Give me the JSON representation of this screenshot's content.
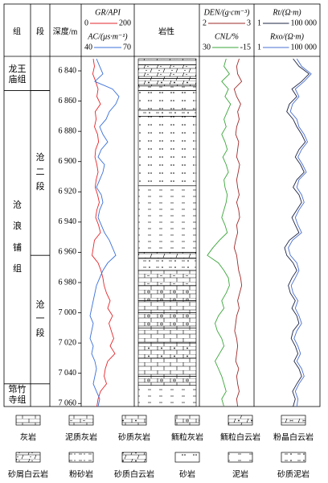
{
  "chart_data": {
    "type": "well-log",
    "headers": {
      "group": "组",
      "segment": "段",
      "depth": "深度/m",
      "lithology": "岩性"
    },
    "ylim": [
      6832,
      7062
    ],
    "yticks": [
      {
        "value": 6840,
        "label": "6 840"
      },
      {
        "value": 6860,
        "label": "6 860"
      },
      {
        "value": 6880,
        "label": "6 880"
      },
      {
        "value": 6900,
        "label": "6 900"
      },
      {
        "value": 6920,
        "label": "6 920"
      },
      {
        "value": 6940,
        "label": "6 940"
      },
      {
        "value": 6960,
        "label": "6 960"
      },
      {
        "value": 6980,
        "label": "6 980"
      },
      {
        "value": 7000,
        "label": "7 000"
      },
      {
        "value": 7020,
        "label": "7 020"
      },
      {
        "value": 7040,
        "label": "7 040"
      },
      {
        "value": 7060,
        "label": "7 060"
      }
    ],
    "depth": [
      6832,
      6837,
      6842,
      6847,
      6852,
      6857,
      6862,
      6867,
      6872,
      6877,
      6882,
      6887,
      6892,
      6897,
      6902,
      6907,
      6912,
      6917,
      6922,
      6927,
      6932,
      6937,
      6942,
      6947,
      6952,
      6957,
      6962,
      6967,
      6972,
      6977,
      6982,
      6987,
      6992,
      6997,
      7002,
      7007,
      7012,
      7017,
      7022,
      7027,
      7032,
      7037,
      7042,
      7047,
      7052,
      7057,
      7062
    ],
    "tracks": [
      {
        "log": false,
        "series": [
          {
            "name": "GR/API",
            "color": "#e3262b",
            "xlim": [
              0,
              200
            ],
            "xticks": [
              0,
              200
            ],
            "values": [
              40,
              45,
              38,
              50,
              60,
              55,
              70,
              48,
              52,
              45,
              58,
              62,
              50,
              47,
              55,
              60,
              52,
              48,
              58,
              65,
              55,
              50,
              62,
              70,
              45,
              40,
              35,
              60,
              72,
              80,
              85,
              95,
              110,
              100,
              120,
              105,
              115,
              125,
              110,
              130,
              100,
              90,
              85,
              95,
              70,
              60,
              55
            ]
          },
          {
            "name": "AC/(μs·m⁻¹)",
            "color": "#3a6fd8",
            "xlim": [
              40,
              70
            ],
            "xticks": [
              40,
              70
            ],
            "values": [
              48,
              50,
              52,
              47,
              58,
              62,
              60,
              56,
              54,
              50,
              52,
              55,
              51,
              49,
              53,
              52,
              50,
              48,
              51,
              52,
              50,
              49,
              51,
              53,
              56,
              58,
              60,
              55,
              52,
              50,
              48,
              47,
              46,
              45,
              44,
              46,
              45,
              44,
              46,
              45,
              47,
              48,
              47,
              46,
              48,
              50,
              49
            ]
          }
        ]
      },
      {
        "log": false,
        "series": [
          {
            "name": "DEN/(g·cm⁻³)",
            "color": "#9e2a2a",
            "xlim": [
              2,
              3
            ],
            "xticks": [
              2,
              3
            ],
            "values": [
              2.75,
              2.7,
              2.72,
              2.8,
              2.65,
              2.7,
              2.78,
              2.72,
              2.75,
              2.7,
              2.68,
              2.74,
              2.72,
              2.7,
              2.76,
              2.73,
              2.7,
              2.72,
              2.75,
              2.7,
              2.74,
              2.76,
              2.7,
              2.72,
              2.68,
              2.65,
              2.7,
              2.72,
              2.74,
              2.78,
              2.8,
              2.76,
              2.72,
              2.75,
              2.7,
              2.68,
              2.66,
              2.7,
              2.72,
              2.7,
              2.68,
              2.74,
              2.7,
              2.72,
              2.75,
              2.7,
              2.72
            ]
          },
          {
            "name": "CNL/%",
            "color": "#3aa53a",
            "xlim": [
              30,
              -15
            ],
            "xticks": [
              30,
              -15
            ],
            "values": [
              8,
              10,
              5,
              12,
              6,
              9,
              4,
              7,
              10,
              8,
              12,
              9,
              7,
              11,
              8,
              6,
              10,
              9,
              7,
              8,
              10,
              12,
              9,
              7,
              14,
              20,
              25,
              15,
              10,
              6,
              5,
              8,
              12,
              10,
              15,
              18,
              16,
              12,
              10,
              14,
              18,
              15,
              12,
              10,
              8,
              12,
              10
            ]
          }
        ]
      },
      {
        "log": true,
        "series": [
          {
            "name": "Rt/(Ω·m)",
            "color": "#1c2444",
            "xlim": [
              1,
              100000
            ],
            "xticks": [
              1,
              {
                "value": 100000,
                "label": "100 000"
              }
            ],
            "values": [
              1000,
              3000,
              20000,
              5000,
              800,
              2000,
              500,
              300,
              1000,
              2000,
              5000,
              10000,
              3000,
              1500,
              4000,
              8000,
              2000,
              1000,
              3000,
              5000,
              2000,
              800,
              1500,
              3000,
              500,
              200,
              300,
              1000,
              2000,
              800,
              400,
              600,
              1500,
              800,
              2000,
              3000,
              1000,
              700,
              1500,
              2500,
              1200,
              3000,
              5000,
              2000,
              900,
              1500,
              1000
            ]
          },
          {
            "name": "Rxo/(Ω·m)",
            "color": "#4a6fd0",
            "xlim": [
              1,
              100000
            ],
            "xticks": [
              1,
              {
                "value": 100000,
                "label": "100 000"
              }
            ],
            "values": [
              2000,
              5000,
              30000,
              8000,
              1500,
              3000,
              900,
              600,
              2000,
              3000,
              8000,
              15000,
              5000,
              2500,
              6000,
              12000,
              3000,
              2000,
              5000,
              8000,
              3000,
              1500,
              2500,
              5000,
              900,
              400,
              600,
              2000,
              3000,
              1500,
              700,
              1000,
              2500,
              1500,
              3000,
              5000,
              2000,
              1200,
              2500,
              4000,
              2000,
              5000,
              8000,
              3000,
              1500,
              2500,
              2000
            ]
          }
        ]
      }
    ],
    "groups": [
      {
        "name": "龙王庙组",
        "top": 6832,
        "bottom": 6853
      },
      {
        "name": "沧浪铺组",
        "top": 6853,
        "bottom": 7047
      },
      {
        "name": "筇竹寺组",
        "top": 7047,
        "bottom": 7062
      }
    ],
    "segments": [
      {
        "name": "沧二段",
        "top": 6853,
        "bottom": 6962
      },
      {
        "name": "沧一段",
        "top": 6962,
        "bottom": 7047
      }
    ],
    "lithology": [
      {
        "top": 6832,
        "bottom": 6836,
        "rock": "粉晶白云岩"
      },
      {
        "top": 6836,
        "bottom": 6845,
        "rock": "砂屑白云岩"
      },
      {
        "top": 6845,
        "bottom": 6850,
        "rock": "砂质白云岩"
      },
      {
        "top": 6850,
        "bottom": 6853,
        "rock": "泥岩"
      },
      {
        "top": 6853,
        "bottom": 6866,
        "rock": "砂岩"
      },
      {
        "top": 6866,
        "bottom": 6870,
        "rock": "砂质泥岩"
      },
      {
        "top": 6870,
        "bottom": 6916,
        "rock": "砂岩"
      },
      {
        "top": 6916,
        "bottom": 6960,
        "rock": "泥岩"
      },
      {
        "top": 6960,
        "bottom": 6964,
        "rock": "砂质白云岩"
      },
      {
        "top": 6964,
        "bottom": 6972,
        "rock": "砂质泥岩"
      },
      {
        "top": 6972,
        "bottom": 6982,
        "rock": "泥质灰岩"
      },
      {
        "top": 6982,
        "bottom": 6992,
        "rock": "鲕粒灰岩"
      },
      {
        "top": 6992,
        "bottom": 7000,
        "rock": "灰岩"
      },
      {
        "top": 7000,
        "bottom": 7010,
        "rock": "鲕粒灰岩"
      },
      {
        "top": 7010,
        "bottom": 7020,
        "rock": "灰岩"
      },
      {
        "top": 7020,
        "bottom": 7030,
        "rock": "砂质灰岩"
      },
      {
        "top": 7030,
        "bottom": 7042,
        "rock": "灰岩"
      },
      {
        "top": 7042,
        "bottom": 7048,
        "rock": "鲕粒灰岩"
      },
      {
        "top": 7048,
        "bottom": 7062,
        "rock": "泥岩"
      }
    ],
    "legend": [
      "灰岩",
      "泥质灰岩",
      "砂质灰岩",
      "鲕粒灰岩",
      "鲕粒白云岩",
      "粉晶白云岩",
      "砂屑白云岩",
      "粉砂岩",
      "砂质白云岩",
      "砂岩",
      "泥岩",
      "砂质泥岩"
    ]
  }
}
